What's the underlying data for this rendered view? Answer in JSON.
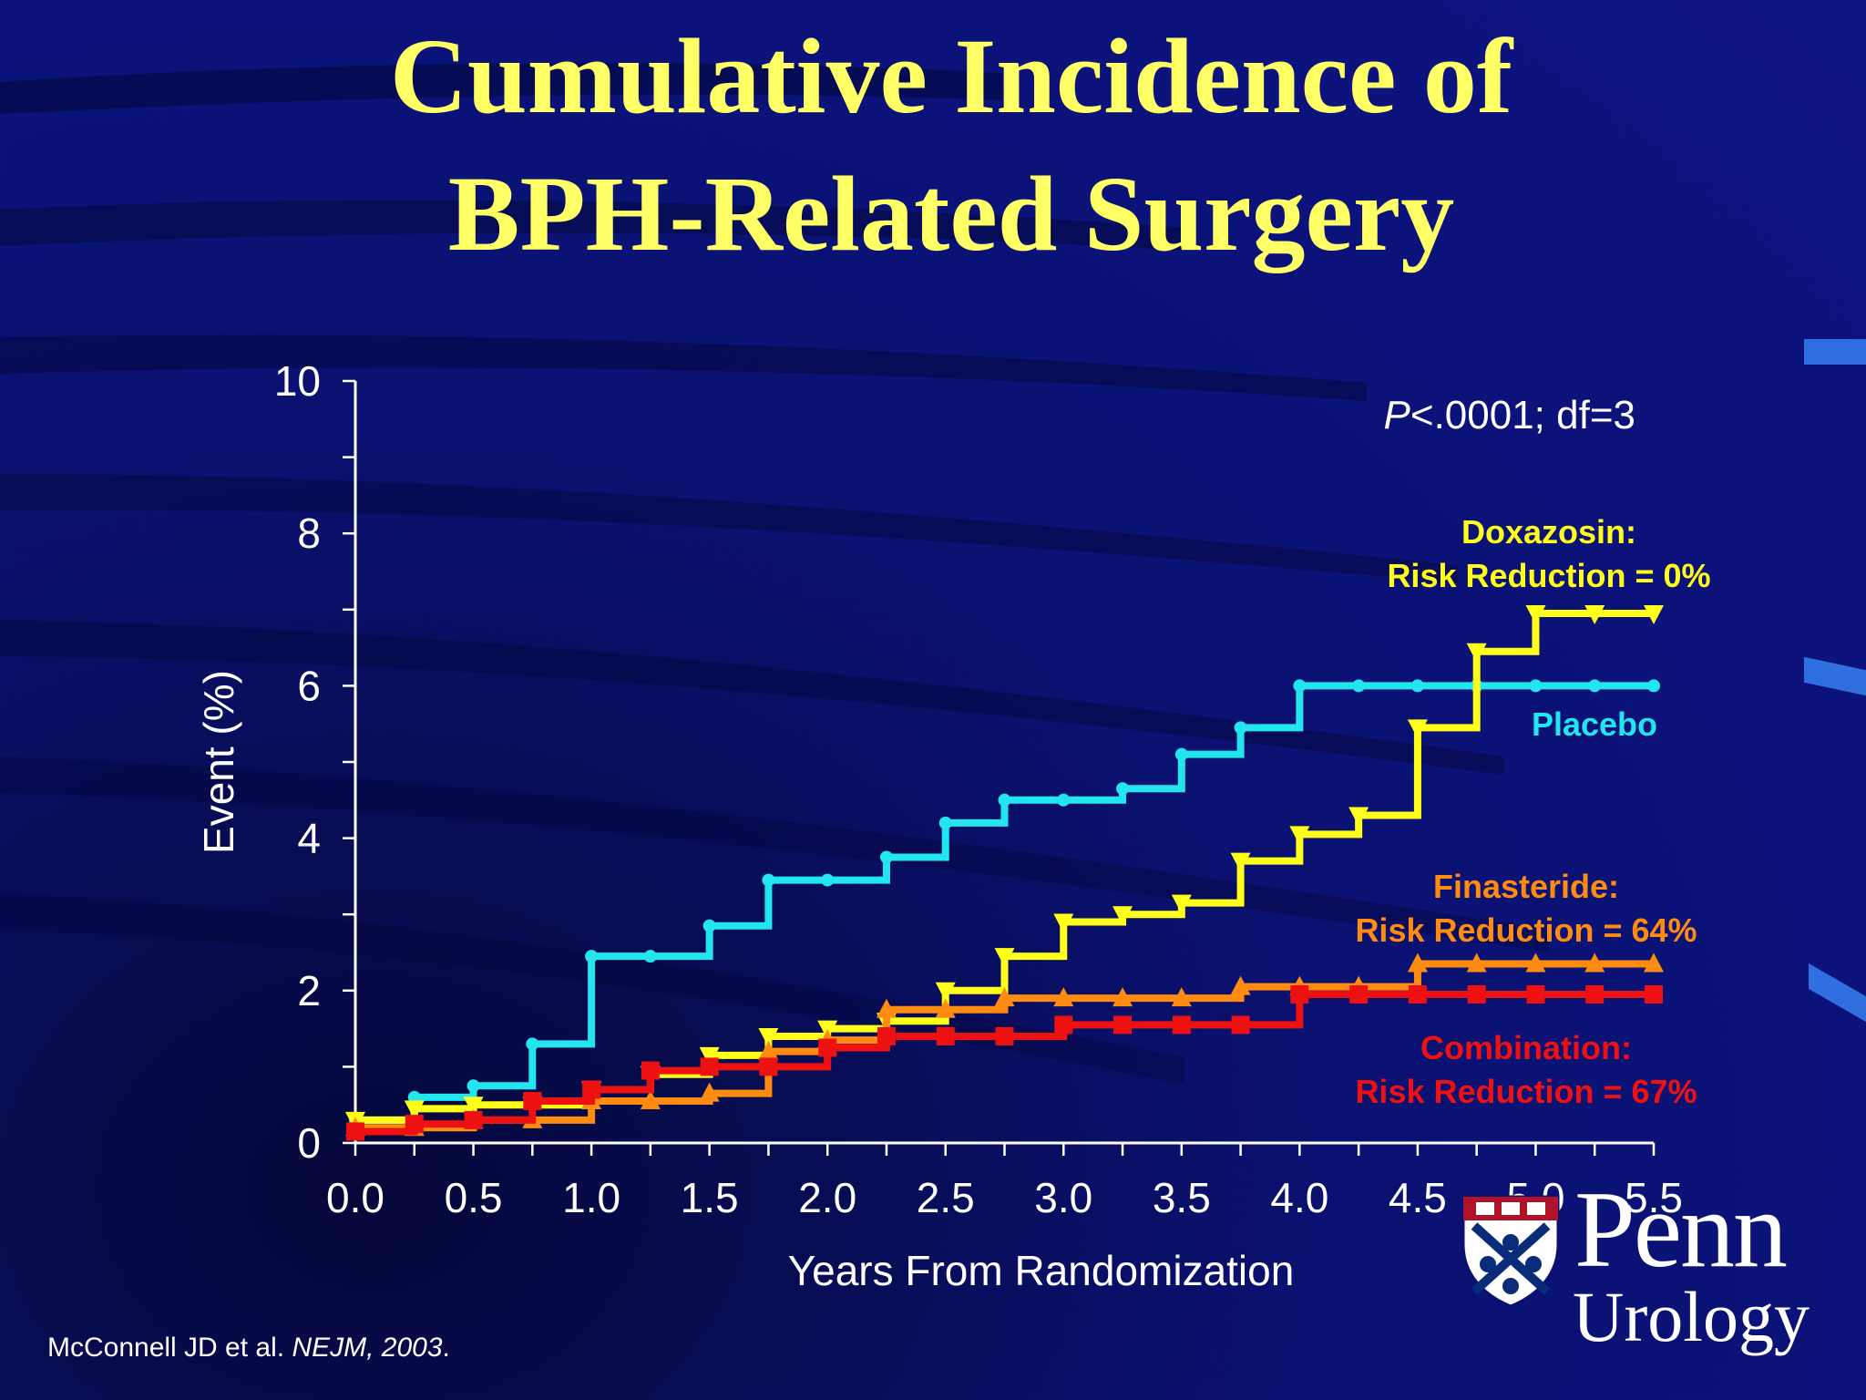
{
  "title_line1": "Cumulative Incidence of",
  "title_line2": "BPH-Related Surgery",
  "citation": {
    "authors": "McConnell JD et al. ",
    "journal": "NEJM, 2003",
    "end": "."
  },
  "logo": {
    "name": "Penn",
    "department": "Urology"
  },
  "chart_data": {
    "type": "line",
    "xlabel": "Years From Randomization",
    "ylabel": "Event (%)",
    "xlim": [
      0,
      5.5
    ],
    "ylim": [
      0,
      10
    ],
    "x_ticks": [
      "0.0",
      "0.5",
      "1.0",
      "1.5",
      "2.0",
      "2.5",
      "3.0",
      "3.5",
      "4.0",
      "4.5",
      "5.0",
      "5.5"
    ],
    "y_ticks": [
      "0",
      "2",
      "4",
      "6",
      "8",
      "10"
    ],
    "annotation": {
      "italic": "P",
      "text": "<.0001; df=3"
    },
    "series": [
      {
        "name": "Placebo",
        "label_lines": [
          "Placebo"
        ],
        "color": "#22e5f0",
        "marker": "circle",
        "steps": [
          [
            0,
            0.3
          ],
          [
            0.25,
            0.6
          ],
          [
            0.5,
            0.75
          ],
          [
            0.75,
            1.3
          ],
          [
            1.0,
            2.45
          ],
          [
            1.5,
            2.85
          ],
          [
            1.75,
            3.45
          ],
          [
            2.25,
            3.75
          ],
          [
            2.5,
            4.2
          ],
          [
            2.75,
            4.5
          ],
          [
            3.25,
            4.65
          ],
          [
            3.5,
            5.1
          ],
          [
            3.75,
            5.45
          ],
          [
            4.0,
            6.0
          ],
          [
            5.5,
            6.0
          ]
        ],
        "markers_x": [
          0,
          0.25,
          0.5,
          0.75,
          1.0,
          1.25,
          1.5,
          1.75,
          2.0,
          2.25,
          2.5,
          2.75,
          3.0,
          3.25,
          3.5,
          3.75,
          4.0,
          4.25,
          4.5,
          4.75,
          5.0,
          5.25,
          5.5
        ]
      },
      {
        "name": "Doxazosin",
        "label_lines": [
          "Doxazosin:",
          "Risk Reduction = 0%"
        ],
        "color": "#ffff1a",
        "marker": "triangle-down",
        "steps": [
          [
            0,
            0.3
          ],
          [
            0.25,
            0.45
          ],
          [
            0.5,
            0.5
          ],
          [
            1.0,
            0.7
          ],
          [
            1.25,
            0.9
          ],
          [
            1.5,
            1.15
          ],
          [
            1.75,
            1.4
          ],
          [
            2.0,
            1.5
          ],
          [
            2.25,
            1.6
          ],
          [
            2.5,
            2.0
          ],
          [
            2.75,
            2.45
          ],
          [
            3.0,
            2.9
          ],
          [
            3.25,
            3.0
          ],
          [
            3.5,
            3.15
          ],
          [
            3.75,
            3.7
          ],
          [
            4.0,
            4.05
          ],
          [
            4.25,
            4.3
          ],
          [
            4.5,
            5.45
          ],
          [
            4.75,
            6.45
          ],
          [
            5.0,
            6.95
          ],
          [
            5.5,
            6.95
          ]
        ],
        "markers_x": [
          0,
          0.25,
          0.5,
          0.75,
          1.0,
          1.25,
          1.5,
          1.75,
          2.0,
          2.25,
          2.5,
          2.75,
          3.0,
          3.25,
          3.5,
          3.75,
          4.0,
          4.25,
          4.5,
          4.75,
          5.0,
          5.25,
          5.5
        ]
      },
      {
        "name": "Finasteride",
        "label_lines": [
          "Finasteride:",
          "Risk Reduction = 64%"
        ],
        "color": "#ff8c10",
        "marker": "triangle-up",
        "steps": [
          [
            0,
            0.2
          ],
          [
            0.5,
            0.3
          ],
          [
            1.0,
            0.55
          ],
          [
            1.5,
            0.65
          ],
          [
            1.75,
            0.8
          ],
          [
            1.75,
            1.2
          ],
          [
            2.0,
            1.35
          ],
          [
            2.25,
            1.75
          ],
          [
            2.75,
            1.9
          ],
          [
            3.75,
            2.05
          ],
          [
            4.5,
            2.35
          ],
          [
            5.5,
            2.35
          ]
        ],
        "markers_x": [
          0,
          0.25,
          0.5,
          0.75,
          1.0,
          1.25,
          1.5,
          1.75,
          2.0,
          2.25,
          2.5,
          2.75,
          3.0,
          3.25,
          3.5,
          3.75,
          4.0,
          4.25,
          4.5,
          4.75,
          5.0,
          5.25,
          5.5
        ]
      },
      {
        "name": "Combination",
        "label_lines": [
          "Combination:",
          "Risk Reduction = 67%"
        ],
        "color": "#ee1111",
        "marker": "square",
        "steps": [
          [
            0,
            0.15
          ],
          [
            0.25,
            0.25
          ],
          [
            0.5,
            0.3
          ],
          [
            0.75,
            0.55
          ],
          [
            1.0,
            0.7
          ],
          [
            1.25,
            0.95
          ],
          [
            1.5,
            1.0
          ],
          [
            2.0,
            1.25
          ],
          [
            2.25,
            1.4
          ],
          [
            3.0,
            1.55
          ],
          [
            4.0,
            1.95
          ],
          [
            5.5,
            1.95
          ]
        ],
        "markers_x": [
          0,
          0.25,
          0.5,
          0.75,
          1.0,
          1.25,
          1.5,
          1.75,
          2.0,
          2.25,
          2.5,
          2.75,
          3.0,
          3.25,
          3.5,
          3.75,
          4.0,
          4.25,
          4.5,
          4.75,
          5.0,
          5.25,
          5.5
        ]
      }
    ]
  }
}
